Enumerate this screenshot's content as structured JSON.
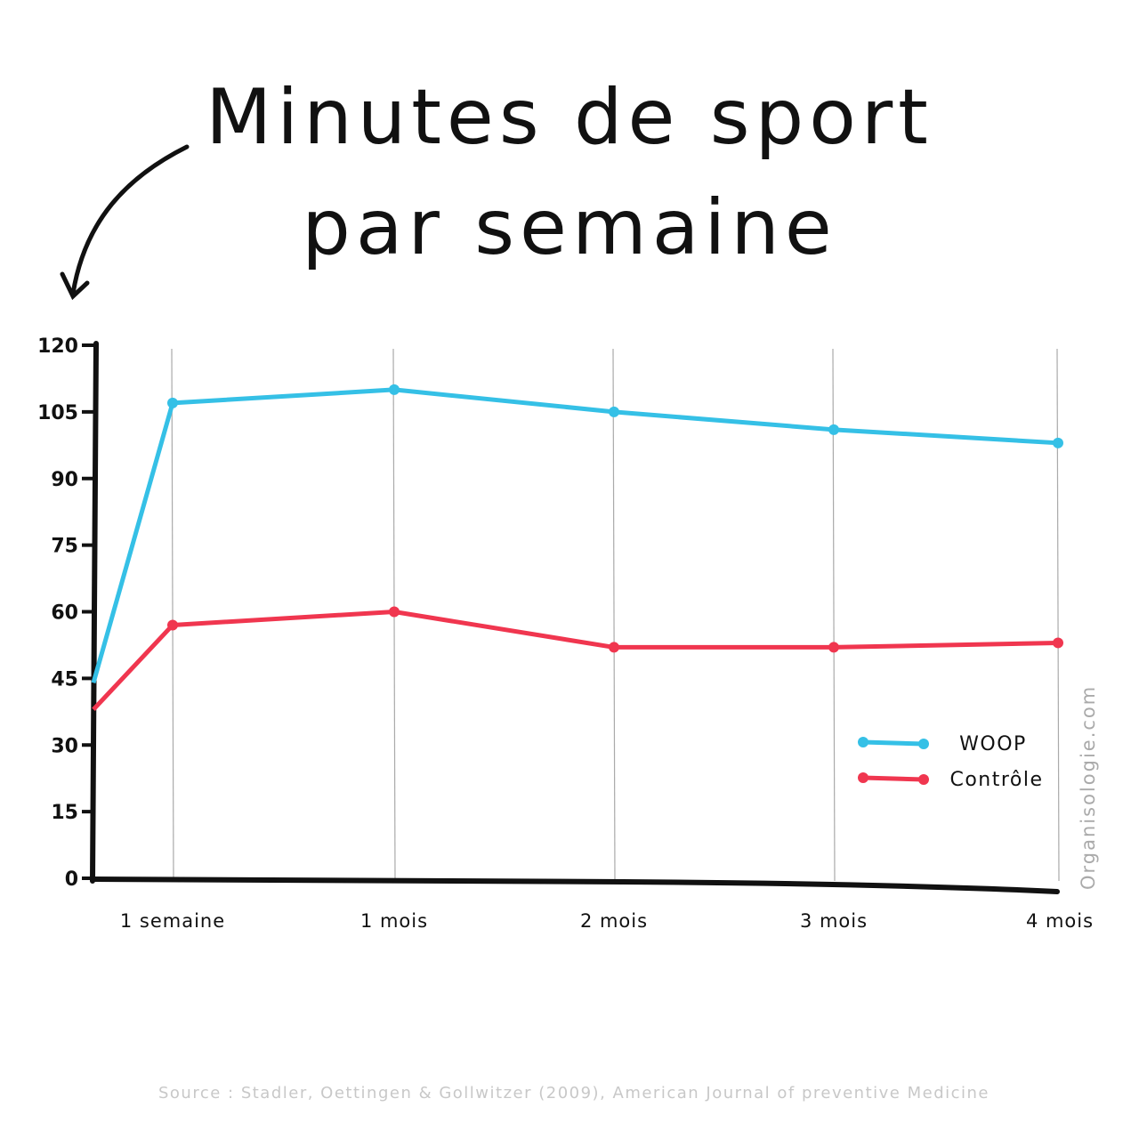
{
  "chart_data": {
    "type": "line",
    "title_lines": [
      "Minutes de sport",
      "par semaine"
    ],
    "categories": [
      "",
      "1 semaine",
      "1 mois",
      "2 mois",
      "3 mois",
      "4 mois"
    ],
    "y_ticks": [
      0,
      15,
      30,
      45,
      60,
      75,
      90,
      105,
      120
    ],
    "ylim": [
      0,
      120
    ],
    "grid": "vertical",
    "legend_placement": "bottom-right",
    "series": [
      {
        "name": "WOOP",
        "color": "#35c0e6",
        "values": [
          44,
          107,
          110,
          105,
          101,
          98
        ]
      },
      {
        "name": "Contrôle",
        "color": "#f0364f",
        "values": [
          38,
          57,
          60,
          52,
          52,
          53
        ]
      }
    ],
    "source": "Source : Stadler, Oettingen & Gollwitzer (2009), American Journal of preventive Medicine",
    "watermark": "Organisologie.com"
  }
}
